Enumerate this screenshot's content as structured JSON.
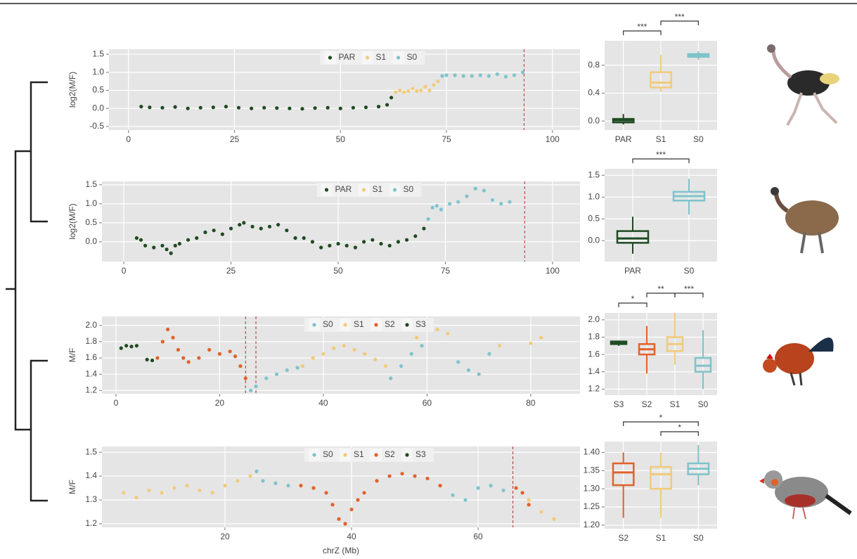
{
  "chart_data": [
    {
      "type": "scatter",
      "ylabel": "log2(M/F)",
      "xlim": [
        -4.6,
        106.5
      ],
      "ylim": [
        -0.6,
        1.64
      ],
      "xticks": [
        0,
        25,
        50,
        75,
        100
      ],
      "yticks": [
        {
          "value": -0.5,
          "label": "-0.5"
        },
        {
          "value": 0,
          "label": "0.0"
        },
        {
          "value": 0.5,
          "label": "0.5"
        },
        {
          "value": 1,
          "label": "1.0"
        },
        {
          "value": 1.5,
          "label": "1.5"
        }
      ],
      "vlines": [
        93.3
      ],
      "series": [
        {
          "name": "PAR",
          "color": "#1f4a22",
          "x": [
            3,
            5,
            8,
            11,
            14,
            17,
            20,
            23,
            26,
            29,
            32,
            35,
            38,
            41,
            44,
            47,
            50,
            53,
            56,
            59,
            61,
            62
          ],
          "values": [
            0.05,
            0.03,
            0.02,
            0.04,
            0,
            0.02,
            0.03,
            0.05,
            0.02,
            0,
            0.02,
            0.01,
            0,
            -0.01,
            0.01,
            0.02,
            0,
            0.02,
            0.03,
            0.05,
            0.1,
            0.3
          ]
        },
        {
          "name": "S1",
          "color": "#f1cb7b",
          "x": [
            63,
            64,
            65,
            66,
            67,
            68,
            69,
            70,
            71,
            72,
            73
          ],
          "values": [
            0.45,
            0.5,
            0.45,
            0.48,
            0.55,
            0.48,
            0.5,
            0.6,
            0.5,
            0.65,
            0.75
          ]
        },
        {
          "name": "S0",
          "color": "#7fc3cb",
          "x": [
            74,
            75,
            77,
            79,
            81,
            83,
            85,
            87,
            89,
            91,
            93
          ],
          "values": [
            0.9,
            0.92,
            0.92,
            0.9,
            0.9,
            0.92,
            0.9,
            0.95,
            0.88,
            0.92,
            1
          ]
        }
      ]
    },
    {
      "type": "box",
      "ylim": [
        -0.13,
        1.15
      ],
      "yticks": [
        {
          "value": 0,
          "label": "0.0"
        },
        {
          "value": 0.4,
          "label": "0.4"
        },
        {
          "value": 0.8,
          "label": "0.8"
        }
      ],
      "categories": [
        "PAR",
        "S1",
        "S0"
      ],
      "boxes": [
        {
          "min": -0.05,
          "q1": -0.02,
          "median": 0.01,
          "q3": 0.03,
          "max": 0.1,
          "color": "#1f4a22"
        },
        {
          "min": 0.42,
          "q1": 0.48,
          "median": 0.55,
          "q3": 0.7,
          "max": 0.95,
          "color": "#f1cb7b"
        },
        {
          "min": 0.88,
          "q1": 0.92,
          "median": 0.94,
          "q3": 0.96,
          "max": 1,
          "color": "#7fc3cb"
        }
      ],
      "brackets": [
        {
          "between": [
            "PAR",
            "S1"
          ],
          "label": "***"
        },
        {
          "between": [
            "S1",
            "S0"
          ],
          "label": "***"
        }
      ]
    },
    {
      "type": "scatter",
      "ylabel": "log2(M/F)",
      "xlim": [
        -5.1,
        106.4
      ],
      "ylim": [
        -0.52,
        1.59
      ],
      "xticks": [
        0,
        25,
        50,
        75,
        100
      ],
      "yticks": [
        {
          "value": 0,
          "label": "0.0"
        },
        {
          "value": 0.5,
          "label": "0.5"
        },
        {
          "value": 1,
          "label": "1.0"
        },
        {
          "value": 1.5,
          "label": "1.5"
        }
      ],
      "vlines": [
        93.5
      ],
      "series": [
        {
          "name": "PAR",
          "color": "#1f4a22",
          "x": [
            3,
            4,
            5,
            7,
            9,
            10,
            11,
            12,
            13,
            15,
            17,
            19,
            21,
            23,
            25,
            27,
            28,
            30,
            32,
            34,
            36,
            38,
            40,
            42,
            44,
            46,
            48,
            50,
            52,
            54,
            56,
            58,
            60,
            62,
            64,
            66,
            68,
            70
          ],
          "values": [
            0.1,
            0.05,
            -0.1,
            -0.15,
            -0.1,
            -0.2,
            -0.3,
            -0.1,
            -0.05,
            0.05,
            0.1,
            0.25,
            0.3,
            0.2,
            0.35,
            0.45,
            0.5,
            0.4,
            0.35,
            0.4,
            0.45,
            0.3,
            0.1,
            0.1,
            0,
            -0.15,
            -0.1,
            -0.05,
            -0.1,
            -0.15,
            0,
            0.05,
            -0.05,
            -0.1,
            0,
            0.05,
            0.15,
            0.35
          ]
        },
        {
          "name": "S1",
          "color": "#f1cb7b",
          "x": [],
          "values": []
        },
        {
          "name": "S0",
          "color": "#7fc3cb",
          "x": [
            71,
            72,
            73,
            74,
            76,
            78,
            80,
            82,
            84,
            86,
            88,
            90
          ],
          "values": [
            0.6,
            0.9,
            0.95,
            0.85,
            1,
            1.05,
            1.2,
            1.4,
            1.35,
            1.1,
            1,
            1.05
          ]
        }
      ]
    },
    {
      "type": "box",
      "ylim": [
        -0.48,
        1.65
      ],
      "yticks": [
        {
          "value": 0,
          "label": "0.0"
        },
        {
          "value": 0.5,
          "label": "0.5"
        },
        {
          "value": 1,
          "label": "1.0"
        },
        {
          "value": 1.5,
          "label": "1.5"
        }
      ],
      "categories": [
        "PAR",
        "S0"
      ],
      "boxes": [
        {
          "min": -0.3,
          "q1": -0.05,
          "median": 0.05,
          "q3": 0.22,
          "max": 0.55,
          "color": "#1f4a22"
        },
        {
          "min": 0.6,
          "q1": 0.92,
          "median": 1.02,
          "q3": 1.12,
          "max": 1.42,
          "color": "#7fc3cb"
        }
      ],
      "brackets": [
        {
          "between": [
            "PAR",
            "S0"
          ],
          "label": "***"
        }
      ]
    },
    {
      "type": "scatter",
      "ylabel": "M/F",
      "xlim": [
        -2.7,
        89.5
      ],
      "ylim": [
        1.16,
        2.11
      ],
      "xticks": [
        0,
        20,
        40,
        60,
        80
      ],
      "yticks": [
        1.2,
        1.4,
        1.6,
        1.8,
        {
          "value": 2,
          "label": "2.0"
        }
      ],
      "vlines": [
        25,
        27
      ],
      "series": [
        {
          "name": "S0",
          "color": "#7fc3cb",
          "x": [
            26,
            27,
            29,
            31,
            33,
            35,
            53,
            55,
            57,
            59,
            66,
            68,
            70,
            72
          ],
          "values": [
            1.2,
            1.25,
            1.35,
            1.4,
            1.45,
            1.48,
            1.35,
            1.5,
            1.65,
            1.75,
            1.55,
            1.45,
            1.4,
            1.65
          ]
        },
        {
          "name": "S1",
          "color": "#f1cb7b",
          "x": [
            36,
            38,
            40,
            42,
            44,
            46,
            48,
            50,
            52,
            58,
            60,
            62,
            64,
            74,
            80,
            82
          ],
          "values": [
            1.5,
            1.6,
            1.65,
            1.72,
            1.75,
            1.7,
            1.65,
            1.58,
            1.5,
            1.85,
            2,
            1.95,
            1.9,
            1.75,
            1.78,
            1.85
          ]
        },
        {
          "name": "S2",
          "color": "#e0622b",
          "x": [
            8,
            9,
            10,
            11,
            12,
            13,
            14,
            16,
            18,
            20,
            22,
            23,
            24,
            25
          ],
          "values": [
            1.6,
            1.8,
            1.95,
            1.85,
            1.7,
            1.6,
            1.55,
            1.6,
            1.7,
            1.65,
            1.68,
            1.62,
            1.5,
            1.35
          ]
        },
        {
          "name": "S3",
          "color": "#1f4a22",
          "x": [
            1,
            2,
            3,
            4,
            6,
            7
          ],
          "values": [
            1.72,
            1.75,
            1.74,
            1.75,
            1.58,
            1.57
          ]
        }
      ]
    },
    {
      "type": "box",
      "ylim": [
        1.13,
        2.08
      ],
      "yticks": [
        1.2,
        1.4,
        1.6,
        1.8,
        {
          "value": 2,
          "label": "2.0"
        }
      ],
      "categories": [
        "S3",
        "S2",
        "S1",
        "S0"
      ],
      "boxes": [
        {
          "min": 1.7,
          "q1": 1.72,
          "median": 1.73,
          "q3": 1.75,
          "max": 1.76,
          "color": "#1f4a22"
        },
        {
          "min": 1.38,
          "q1": 1.6,
          "median": 1.66,
          "q3": 1.72,
          "max": 1.93,
          "color": "#e0622b"
        },
        {
          "min": 1.48,
          "q1": 1.64,
          "median": 1.72,
          "q3": 1.8,
          "max": 2.08,
          "color": "#f1cb7b"
        },
        {
          "min": 1.2,
          "q1": 1.4,
          "median": 1.47,
          "q3": 1.56,
          "max": 1.88,
          "color": "#7fc3cb"
        }
      ],
      "brackets": [
        {
          "between": [
            "S3",
            "S2"
          ],
          "label": "*"
        },
        {
          "between": [
            "S2",
            "S1"
          ],
          "label": "**"
        },
        {
          "between": [
            "S1",
            "S0"
          ],
          "label": "***"
        }
      ]
    },
    {
      "type": "scatter",
      "ylabel": "M/F",
      "xlabel": "chrZ (Mb)",
      "xlim": [
        0.56,
        76.1
      ],
      "ylim": [
        1.185,
        1.524
      ],
      "xticks": [
        20,
        40,
        60
      ],
      "yticks": [
        {
          "value": 1.2,
          "label": "1.2"
        },
        {
          "value": 1.3,
          "label": "1.3"
        },
        {
          "value": 1.4,
          "label": "1.4"
        },
        {
          "value": 1.5,
          "label": "1.5"
        }
      ],
      "vlines": [
        65.5
      ],
      "series": [
        {
          "name": "S0",
          "color": "#7fc3cb",
          "x": [
            25,
            26,
            28,
            30,
            56,
            58,
            60,
            62,
            64
          ],
          "values": [
            1.42,
            1.38,
            1.37,
            1.36,
            1.32,
            1.3,
            1.35,
            1.36,
            1.34
          ]
        },
        {
          "name": "S1",
          "color": "#f1cb7b",
          "x": [
            4,
            6,
            8,
            10,
            12,
            14,
            16,
            18,
            20,
            22,
            24,
            68,
            70,
            72
          ],
          "values": [
            1.33,
            1.31,
            1.34,
            1.33,
            1.35,
            1.36,
            1.34,
            1.33,
            1.36,
            1.38,
            1.4,
            1.3,
            1.25,
            1.22
          ]
        },
        {
          "name": "S2",
          "color": "#e0622b",
          "x": [
            32,
            34,
            36,
            37,
            38,
            39,
            40,
            41,
            42,
            44,
            46,
            48,
            50,
            52,
            54,
            66,
            67,
            68
          ],
          "values": [
            1.36,
            1.35,
            1.33,
            1.28,
            1.22,
            1.2,
            1.26,
            1.3,
            1.33,
            1.38,
            1.4,
            1.41,
            1.4,
            1.39,
            1.36,
            1.35,
            1.33,
            1.28
          ]
        },
        {
          "name": "S3",
          "color": "#1f4a22",
          "x": [],
          "values": []
        }
      ]
    },
    {
      "type": "box",
      "ylim": [
        1.19,
        1.43
      ],
      "yticks": [
        {
          "value": 1.2,
          "label": "1.20"
        },
        {
          "value": 1.25,
          "label": "1.25"
        },
        {
          "value": 1.3,
          "label": "1.30"
        },
        {
          "value": 1.35,
          "label": "1.35"
        },
        {
          "value": 1.4,
          "label": "1.40"
        }
      ],
      "categories": [
        "S2",
        "S1",
        "S0"
      ],
      "boxes": [
        {
          "min": 1.22,
          "q1": 1.31,
          "median": 1.345,
          "q3": 1.37,
          "max": 1.4,
          "color": "#e0622b"
        },
        {
          "min": 1.22,
          "q1": 1.3,
          "median": 1.34,
          "q3": 1.36,
          "max": 1.4,
          "color": "#f1cb7b"
        },
        {
          "min": 1.31,
          "q1": 1.34,
          "median": 1.355,
          "q3": 1.37,
          "max": 1.42,
          "color": "#7fc3cb"
        }
      ],
      "brackets": [
        {
          "between": [
            "S1",
            "S0"
          ],
          "label": "*"
        },
        {
          "between": [
            "S2",
            "S0"
          ],
          "label": "*"
        }
      ]
    }
  ]
}
